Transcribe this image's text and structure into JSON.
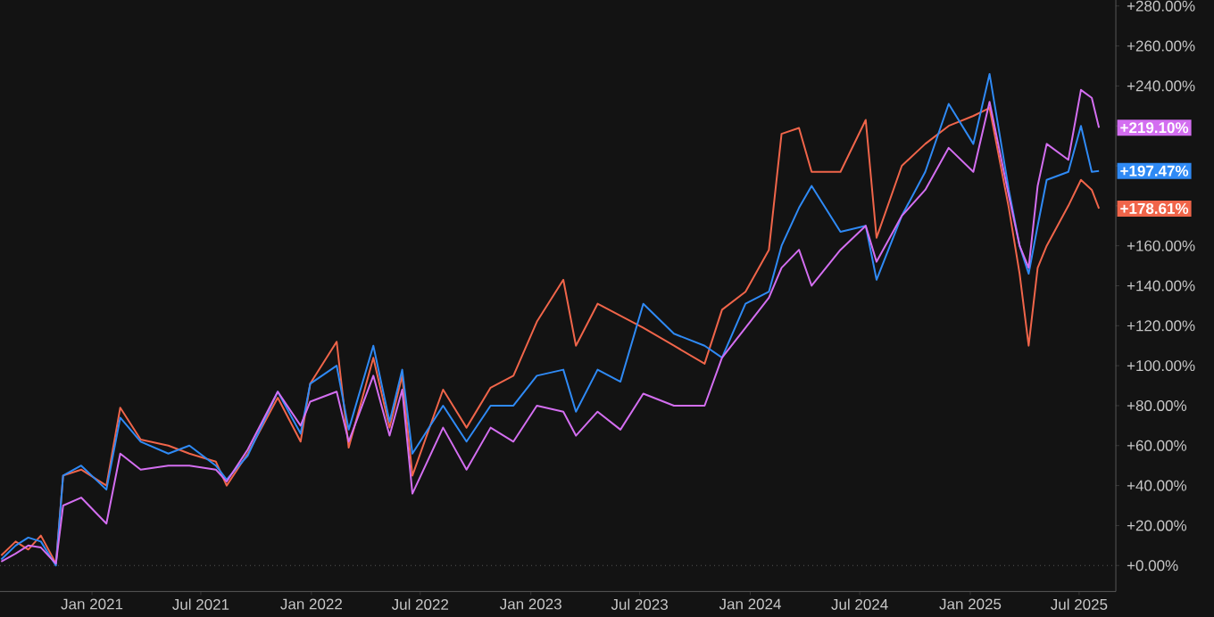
{
  "chart_data": {
    "type": "line",
    "marker": "none",
    "line_style": "solid",
    "x": [
      "2020-08-03",
      "2020-08-27",
      "2020-09-17",
      "2020-10-08",
      "2020-11-02",
      "2020-11-14",
      "2020-12-14",
      "2021-01-25",
      "2021-02-17",
      "2021-03-23",
      "2021-05-08",
      "2021-06-12",
      "2021-07-26",
      "2021-08-13",
      "2021-09-17",
      "2021-11-06",
      "2021-12-14",
      "2021-12-30",
      "2022-02-12",
      "2022-03-04",
      "2022-04-14",
      "2022-05-11",
      "2022-06-01",
      "2022-06-18",
      "2022-08-08",
      "2022-09-16",
      "2022-10-26",
      "2022-12-03",
      "2023-01-11",
      "2023-02-24",
      "2023-03-17",
      "2023-04-22",
      "2023-05-30",
      "2023-07-07",
      "2023-08-27",
      "2023-10-17",
      "2023-11-15",
      "2023-12-24",
      "2024-02-01",
      "2024-02-22",
      "2024-03-22",
      "2024-04-12",
      "2024-05-30",
      "2024-07-11",
      "2024-07-29",
      "2024-09-09",
      "2024-10-18",
      "2024-11-26",
      "2025-01-06",
      "2025-02-02",
      "2025-03-06",
      "2025-03-24",
      "2025-04-08",
      "2025-04-23",
      "2025-05-08",
      "2025-06-13",
      "2025-07-04",
      "2025-07-22",
      "2025-08-03"
    ],
    "series": [
      {
        "color": "#f0654a",
        "values": [
          5,
          12,
          8,
          15,
          1,
          45,
          48,
          40,
          79,
          63,
          60,
          56,
          52,
          40,
          56,
          84,
          62,
          91,
          112,
          59,
          104,
          69,
          95,
          45,
          88,
          69,
          89,
          95,
          122,
          143,
          110,
          131,
          125,
          119,
          110,
          101,
          128,
          137,
          158,
          216,
          219,
          197,
          197,
          223,
          164,
          200,
          211,
          220,
          225,
          229,
          179,
          146,
          110,
          149,
          160,
          180,
          193,
          188,
          178.61
        ]
      },
      {
        "color": "#2f8af5",
        "values": [
          3,
          10,
          14,
          12,
          0,
          45,
          50,
          38,
          74,
          62,
          56,
          60,
          50,
          43,
          55,
          87,
          66,
          91,
          100,
          68,
          110,
          72,
          98,
          56,
          80,
          62,
          80,
          80,
          95,
          98,
          77,
          98,
          92,
          131,
          116,
          110,
          104,
          131,
          137,
          160,
          179,
          190,
          167,
          170,
          143,
          175,
          197,
          231,
          211,
          246,
          188,
          160,
          146,
          170,
          193,
          197,
          220,
          197,
          197.47
        ]
      },
      {
        "color": "#d36ef0",
        "values": [
          2,
          6,
          10,
          9,
          1,
          30,
          34,
          21,
          56,
          48,
          50,
          50,
          48,
          42,
          58,
          87,
          70,
          82,
          87,
          62,
          95,
          65,
          88,
          36,
          69,
          48,
          69,
          62,
          80,
          77,
          65,
          77,
          68,
          86,
          80,
          80,
          104,
          119,
          134,
          149,
          158,
          140,
          158,
          170,
          152,
          175,
          188,
          209,
          197,
          232,
          185,
          160,
          149,
          190,
          211,
          203,
          238,
          234,
          219.1
        ]
      }
    ],
    "annotations": [
      {
        "text": "+178.61%",
        "x": "2025-08-03",
        "y": 178.61
      },
      {
        "text": "+197.47%",
        "x": "2025-08-03",
        "y": 197.47
      },
      {
        "text": "+219.10%",
        "x": "2025-08-03",
        "y": 219.1
      }
    ],
    "ref_lines": [
      {
        "axis": "y",
        "value": 0,
        "line_style": "dotted",
        "color": "#555555"
      }
    ],
    "xlim": [
      "2020-08-01",
      "2025-08-31"
    ],
    "xticks": [
      {
        "value": "2021-01-01",
        "label": "Jan 2021"
      },
      {
        "value": "2021-07-01",
        "label": "Jul 2021"
      },
      {
        "value": "2022-01-01",
        "label": "Jan 2022"
      },
      {
        "value": "2022-07-01",
        "label": "Jul 2022"
      },
      {
        "value": "2023-01-01",
        "label": "Jan 2023"
      },
      {
        "value": "2023-07-01",
        "label": "Jul 2023"
      },
      {
        "value": "2024-01-01",
        "label": "Jan 2024"
      },
      {
        "value": "2024-07-01",
        "label": "Jul 2024"
      },
      {
        "value": "2025-01-01",
        "label": "Jan 2025"
      },
      {
        "value": "2025-07-01",
        "label": "Jul 2025"
      }
    ],
    "ylim": [
      -13,
      283
    ],
    "yticks": [
      {
        "value": 0,
        "label": "+0.00%"
      },
      {
        "value": 20,
        "label": "+20.00%"
      },
      {
        "value": 40,
        "label": "+40.00%"
      },
      {
        "value": 60,
        "label": "+60.00%"
      },
      {
        "value": 80,
        "label": "+80.00%"
      },
      {
        "value": 100,
        "label": "+100.00%"
      },
      {
        "value": 120,
        "label": "+120.00%"
      },
      {
        "value": 140,
        "label": "+140.00%"
      },
      {
        "value": 160,
        "label": "+160.00%"
      },
      {
        "value": 180,
        "label": null
      },
      {
        "value": 200,
        "label": null
      },
      {
        "value": 220,
        "label": null
      },
      {
        "value": 240,
        "label": "+240.00%"
      },
      {
        "value": 260,
        "label": "+260.00%"
      },
      {
        "value": 280,
        "label": "+280.00%"
      }
    ]
  }
}
